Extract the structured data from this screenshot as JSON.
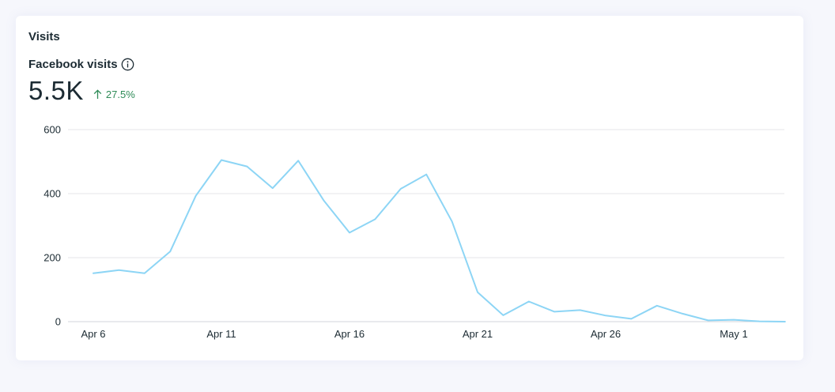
{
  "card": {
    "title": "Visits"
  },
  "metric": {
    "label": "Facebook visits",
    "info_icon": "info-icon",
    "value": "5.5K",
    "change": "27.5%",
    "change_icon": "arrow-up-icon",
    "change_color": "#2e8b57"
  },
  "chart_data": {
    "type": "line",
    "title": "",
    "xlabel": "",
    "ylabel": "",
    "ylim": [
      0,
      600
    ],
    "yticks": [
      0,
      200,
      400,
      600
    ],
    "x_tick_labels": [
      "Apr 6",
      "Apr 11",
      "Apr 16",
      "Apr 21",
      "Apr 26",
      "May 1"
    ],
    "x_tick_indices": [
      0,
      5,
      10,
      15,
      20,
      25
    ],
    "grid": true,
    "legend": "none",
    "line_color": "#8dd5f5",
    "series": [
      {
        "dates": [
          "Apr 6",
          "Apr 7",
          "Apr 8",
          "Apr 9",
          "Apr 10",
          "Apr 11",
          "Apr 12",
          "Apr 13",
          "Apr 14",
          "Apr 15",
          "Apr 16",
          "Apr 17",
          "Apr 18",
          "Apr 19",
          "Apr 20",
          "Apr 21",
          "Apr 22",
          "Apr 23",
          "Apr 24",
          "Apr 25",
          "Apr 26",
          "Apr 27",
          "Apr 28",
          "Apr 29",
          "Apr 30",
          "May 1",
          "May 2",
          "May 3"
        ],
        "values": [
          151,
          161,
          151,
          219,
          393,
          505,
          485,
          417,
          503,
          378,
          278,
          320,
          415,
          460,
          313,
          92,
          20,
          63,
          31,
          36,
          19,
          9,
          50,
          25,
          4,
          6,
          1,
          0
        ]
      }
    ]
  }
}
